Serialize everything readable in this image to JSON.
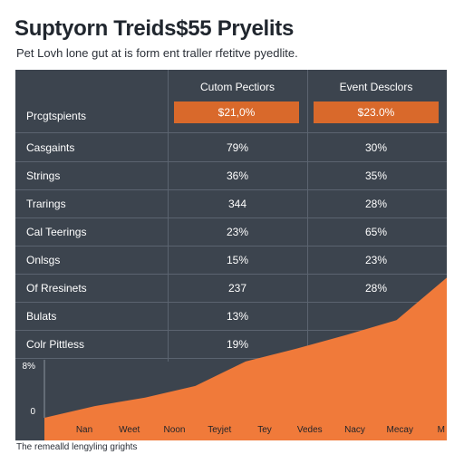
{
  "header": {
    "title": "Suptyorn Treids$55 Pryelits",
    "subtitle": "Pet Lovh lone gut at is form ent traller rfetitve pyedlite."
  },
  "table": {
    "col_headers": [
      "Cutom Pectiors",
      "Event Desclors"
    ],
    "first_col_header": "Prcgtspients",
    "highlight_values": [
      "$21,0%",
      "$23.0%"
    ],
    "rows": [
      {
        "label": "Casgaints",
        "a": "79%",
        "b": "30%"
      },
      {
        "label": "Strings",
        "a": "36%",
        "b": "35%"
      },
      {
        "label": "Trarings",
        "a": "344",
        "b": "28%"
      },
      {
        "label": "Cal Teerings",
        "a": "23%",
        "b": "65%"
      },
      {
        "label": "Onlsgs",
        "a": "15%",
        "b": "23%"
      },
      {
        "label": "Of Rresinets",
        "a": "237",
        "b": "28%"
      },
      {
        "label": "Bulats",
        "a": "13%",
        "b": ""
      },
      {
        "label": "Colr Pittless",
        "a": "19%",
        "b": ""
      }
    ]
  },
  "chart_data": {
    "type": "area",
    "y_tick_labels": [
      "8%",
      "0"
    ],
    "categories": [
      "Nan",
      "Weet",
      "Noon",
      "Teyjet",
      "Tey",
      "Vedes",
      "Nacy",
      "Mecay",
      "M"
    ],
    "values": [
      0,
      11,
      19,
      30,
      53,
      65,
      78,
      92,
      132
    ],
    "ylim": [
      0,
      140
    ],
    "color": "#f07a3a",
    "caption": "The remealld lengyling grights"
  }
}
